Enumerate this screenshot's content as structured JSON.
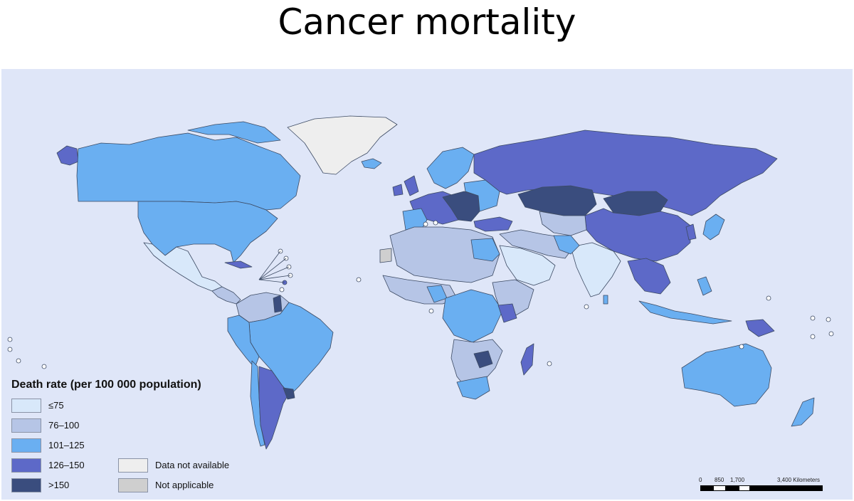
{
  "title": "Cancer mortality",
  "legend": {
    "title": "Death rate (per 100 000 population)",
    "classes": [
      {
        "label": "≤75",
        "color": "#d8e8fa"
      },
      {
        "label": "76–100",
        "color": "#b6c5e6"
      },
      {
        "label": "101–125",
        "color": "#6aaff1"
      },
      {
        "label": "126–150",
        "color": "#5d69c8"
      },
      {
        "label": ">150",
        "color": "#3a4d7e"
      }
    ],
    "other": [
      {
        "label": "Data not available",
        "color": "#eeeeee"
      },
      {
        "label": "Not applicable",
        "color": "#cfcfcf"
      }
    ]
  },
  "scale": {
    "ticks": [
      "0",
      "850",
      "1,700",
      "3,400 Kilometers"
    ]
  },
  "colors": {
    "ocean": "#dfe6f8",
    "border": "#3c4a63"
  }
}
